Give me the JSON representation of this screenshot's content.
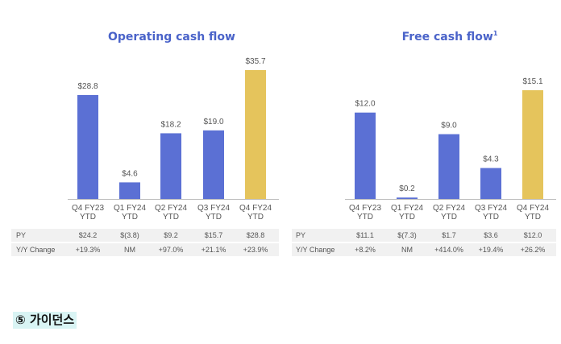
{
  "chart_data": [
    {
      "type": "bar",
      "title": "Operating cash flow",
      "title_superscript": "",
      "categories": [
        "Q4 FY23 YTD",
        "Q1 FY24 YTD",
        "Q2 FY24 YTD",
        "Q3 FY24 YTD",
        "Q4 FY24 YTD"
      ],
      "category_lines": [
        [
          "Q4 FY23",
          "YTD"
        ],
        [
          "Q1 FY24",
          "YTD"
        ],
        [
          "Q2 FY24",
          "YTD"
        ],
        [
          "Q3 FY24",
          "YTD"
        ],
        [
          "Q4 FY24",
          "YTD"
        ]
      ],
      "values": [
        28.8,
        4.6,
        18.2,
        19.0,
        35.7
      ],
      "value_labels": [
        "$28.8",
        "$4.6",
        "$18.2",
        "$19.0",
        "$35.7"
      ],
      "ylim": [
        0,
        35.7
      ],
      "colors": [
        "#5b70d4",
        "#5b70d4",
        "#5b70d4",
        "#5b70d4",
        "#e5c45c"
      ],
      "table": [
        {
          "label": "PY",
          "values": [
            "$24.2",
            "$(3.8)",
            "$9.2",
            "$15.7",
            "$28.8"
          ]
        },
        {
          "label": "Y/Y Change",
          "values": [
            "+19.3%",
            "NM",
            "+97.0%",
            "+21.1%",
            "+23.9%"
          ]
        }
      ]
    },
    {
      "type": "bar",
      "title": "Free cash flow",
      "title_superscript": "1",
      "categories": [
        "Q4 FY23 YTD",
        "Q1 FY24 YTD",
        "Q2 FY24 YTD",
        "Q3 FY24 YTD",
        "Q4 FY24 YTD"
      ],
      "category_lines": [
        [
          "Q4 FY23",
          "YTD"
        ],
        [
          "Q1 FY24",
          "YTD"
        ],
        [
          "Q2 FY24",
          "YTD"
        ],
        [
          "Q3 FY24",
          "YTD"
        ],
        [
          "Q4 FY24",
          "YTD"
        ]
      ],
      "values": [
        12.0,
        0.2,
        9.0,
        4.3,
        15.1
      ],
      "value_labels": [
        "$12.0",
        "$0.2",
        "$9.0",
        "$4.3",
        "$15.1"
      ],
      "ylim": [
        0,
        15.1
      ],
      "colors": [
        "#5b70d4",
        "#5b70d4",
        "#5b70d4",
        "#5b70d4",
        "#e5c45c"
      ],
      "table": [
        {
          "label": "PY",
          "values": [
            "$11.1",
            "$(7.3)",
            "$1.7",
            "$3.6",
            "$12.0"
          ]
        },
        {
          "label": "Y/Y Change",
          "values": [
            "+8.2%",
            "NM",
            "+414.0%",
            "+19.4%",
            "+26.2%"
          ]
        }
      ]
    }
  ],
  "guidance_heading": "⑤ 가이던스"
}
